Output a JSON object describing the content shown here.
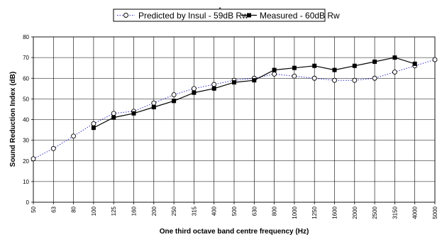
{
  "chart_data": {
    "type": "line",
    "title": "-",
    "xlabel": "One third octave band centre frequency (Hz)",
    "ylabel": "Sound Reduction Index (dB)",
    "ylim": [
      0,
      80
    ],
    "yticks": [
      0,
      10,
      20,
      30,
      40,
      50,
      60,
      70,
      80
    ],
    "grid": true,
    "legend": "top",
    "categories": [
      "50",
      "63",
      "80",
      "100",
      "125",
      "160",
      "200",
      "250",
      "315",
      "400",
      "500",
      "630",
      "800",
      "1000",
      "1250",
      "1600",
      "2000",
      "2500",
      "3150",
      "4000",
      "5000"
    ],
    "series": [
      {
        "name": "Predicted by Insul - 59dB Rw",
        "color": "#3333cc",
        "style": "dotted",
        "marker": "open-circle",
        "values": [
          21,
          26,
          32,
          38,
          43,
          44,
          48,
          52,
          55,
          57,
          59,
          60,
          62,
          61,
          60,
          59,
          59,
          60,
          63,
          66,
          69
        ]
      },
      {
        "name": "Measured - 60dB Rw",
        "color": "#000000",
        "style": "solid",
        "marker": "filled-square",
        "values": [
          null,
          null,
          null,
          36,
          41,
          43,
          46,
          49,
          53,
          55,
          58,
          59,
          64,
          65,
          66,
          64,
          66,
          68,
          70,
          67,
          null
        ]
      }
    ]
  }
}
